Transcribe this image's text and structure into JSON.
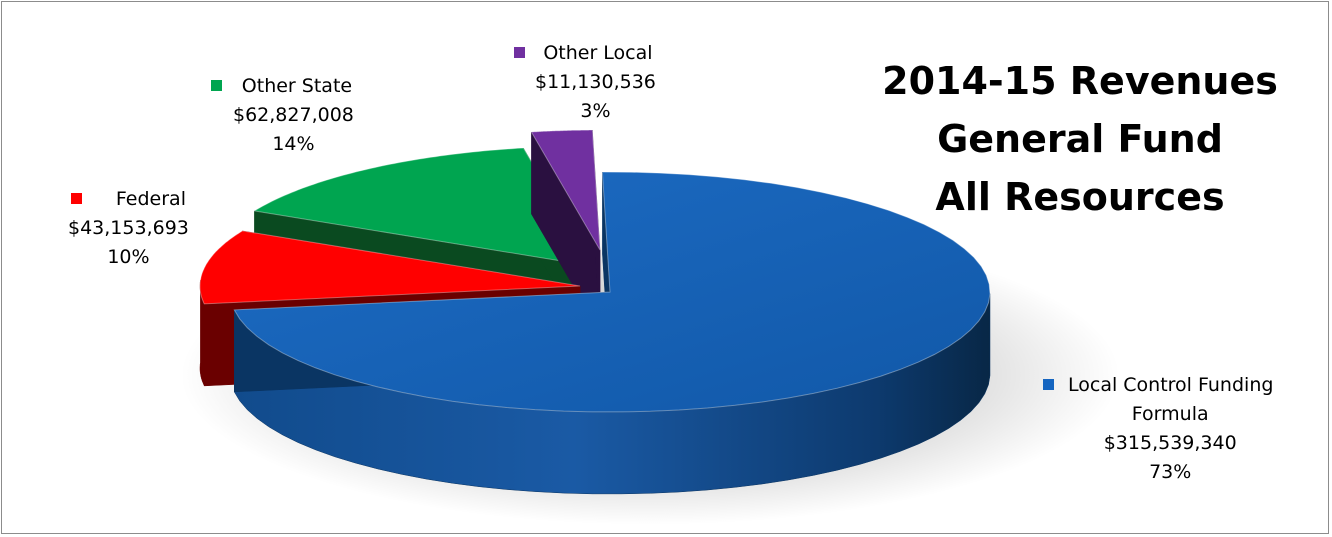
{
  "chart_data": {
    "type": "pie",
    "title_lines": [
      "2014-15 Revenues",
      "General Fund",
      "All Resources"
    ],
    "slices": [
      {
        "name": "Local Control Funding Formula",
        "name_lines": [
          "Local Control Funding",
          "Formula"
        ],
        "value_text": "$315,539,340",
        "value": 315539340,
        "percent_text": "73%",
        "color": "#1565c0",
        "dark": "#0a3563"
      },
      {
        "name": "Federal",
        "name_lines": [
          "Federal"
        ],
        "value_text": "$43,153,693",
        "value": 43153693,
        "percent_text": "10%",
        "color": "#ff0000",
        "dark": "#6a0000"
      },
      {
        "name": "Other State",
        "name_lines": [
          "Other State"
        ],
        "value_text": "$62,827,008",
        "value": 62827008,
        "percent_text": "14%",
        "color": "#00a550",
        "dark": "#0a4a20"
      },
      {
        "name": "Other Local",
        "name_lines": [
          "Other Local"
        ],
        "value_text": "$11,130,536",
        "value": 11130536,
        "percent_text": "3%",
        "color": "#7030a0",
        "dark": "#2a1040"
      }
    ],
    "exploded": true,
    "style": "3d"
  }
}
